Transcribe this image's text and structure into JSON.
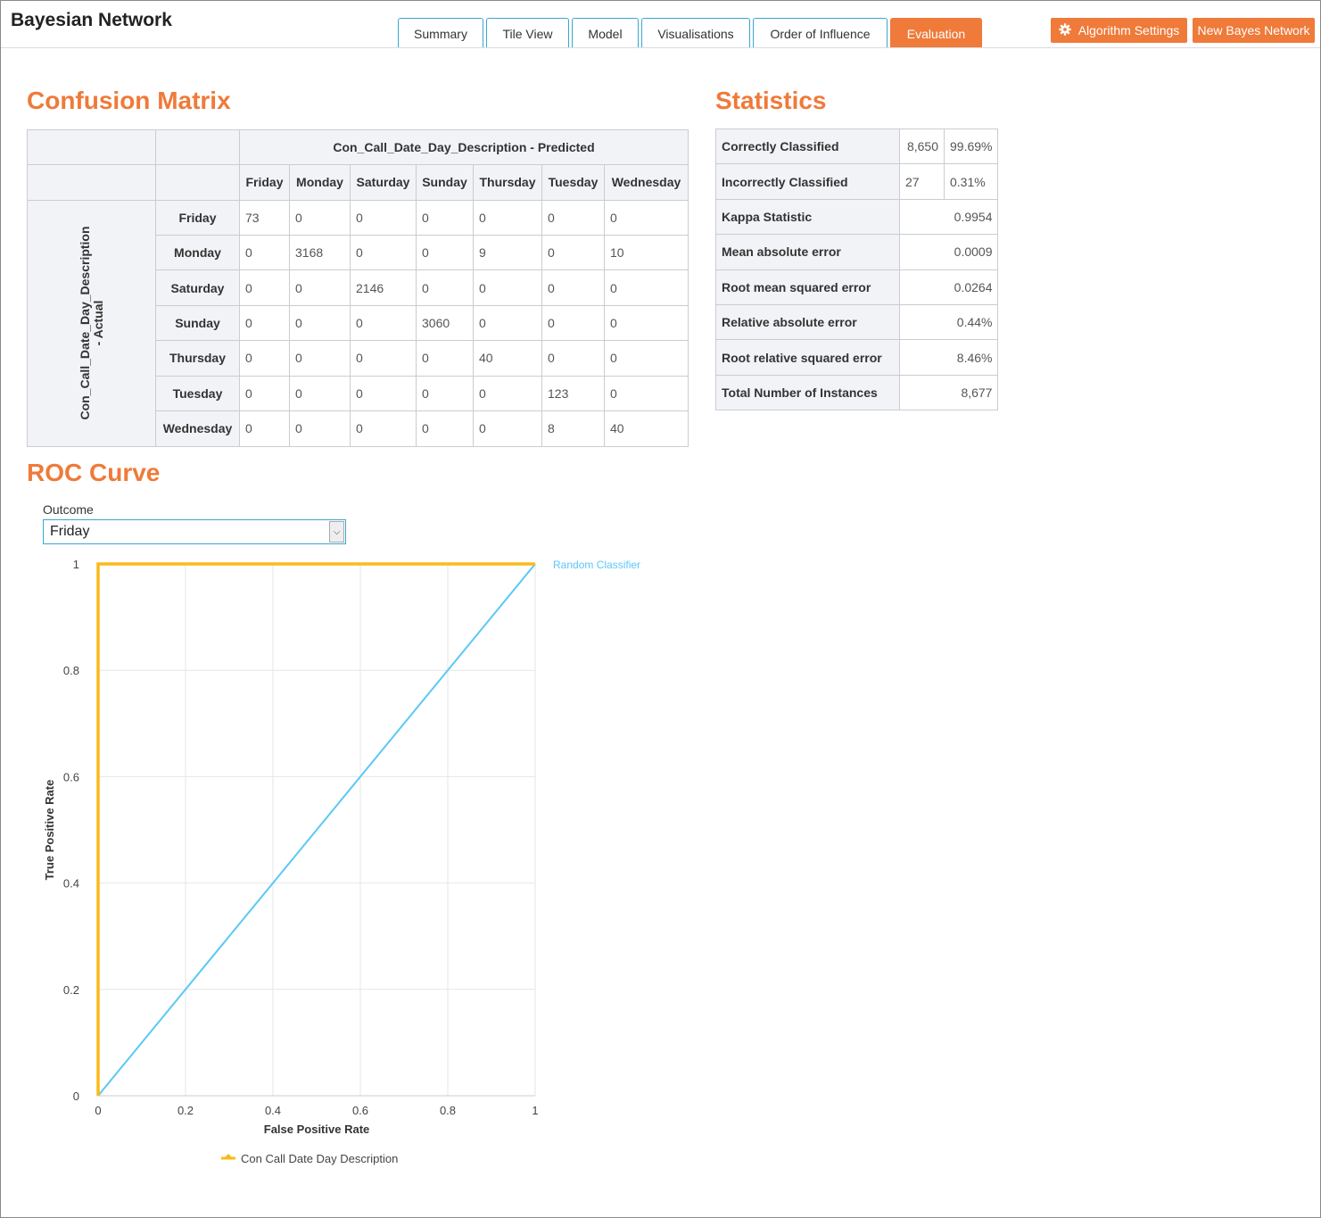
{
  "app": {
    "title": "Bayesian Network"
  },
  "tabs": [
    {
      "label": "Summary",
      "active": false
    },
    {
      "label": "Tile View",
      "active": false
    },
    {
      "label": "Model",
      "active": false
    },
    {
      "label": "Visualisations",
      "active": false
    },
    {
      "label": "Order of Influence",
      "active": false
    },
    {
      "label": "Evaluation",
      "active": true
    }
  ],
  "actions": {
    "algorithm_settings": "Algorithm Settings",
    "new_bayes_network": "New Bayes Network"
  },
  "colors": {
    "accent": "#ef7a39",
    "tab_border": "#3aa6d0",
    "series": "#fbba19",
    "random": "#5bc8f5"
  },
  "confusion_matrix": {
    "title": "Confusion Matrix",
    "predicted_label": "Con_Call_Date_Day_Description - Predicted",
    "actual_label_line1": "Con_Call_Date_Day_Description",
    "actual_label_line2": "- Actual",
    "columns": [
      "Friday",
      "Monday",
      "Saturday",
      "Sunday",
      "Thursday",
      "Tuesday",
      "Wednesday"
    ],
    "rows": [
      {
        "label": "Friday",
        "values": [
          "73",
          "0",
          "0",
          "0",
          "0",
          "0",
          "0"
        ]
      },
      {
        "label": "Monday",
        "values": [
          "0",
          "3168",
          "0",
          "0",
          "9",
          "0",
          "10"
        ]
      },
      {
        "label": "Saturday",
        "values": [
          "0",
          "0",
          "2146",
          "0",
          "0",
          "0",
          "0"
        ]
      },
      {
        "label": "Sunday",
        "values": [
          "0",
          "0",
          "0",
          "3060",
          "0",
          "0",
          "0"
        ]
      },
      {
        "label": "Thursday",
        "values": [
          "0",
          "0",
          "0",
          "0",
          "40",
          "0",
          "0"
        ]
      },
      {
        "label": "Tuesday",
        "values": [
          "0",
          "0",
          "0",
          "0",
          "0",
          "123",
          "0"
        ]
      },
      {
        "label": "Wednesday",
        "values": [
          "0",
          "0",
          "0",
          "0",
          "0",
          "8",
          "40"
        ]
      }
    ]
  },
  "statistics": {
    "title": "Statistics",
    "correctly_classified": {
      "label": "Correctly Classified",
      "count": "8,650",
      "pct": "99.69%"
    },
    "incorrectly_classified": {
      "label": "Incorrectly Classified",
      "count": "27",
      "pct": "0.31%"
    },
    "rows": [
      {
        "label": "Kappa Statistic",
        "value": "0.9954"
      },
      {
        "label": "Mean absolute error",
        "value": "0.0009"
      },
      {
        "label": "Root mean squared error",
        "value": "0.0264"
      },
      {
        "label": "Relative absolute error",
        "value": "0.44%"
      },
      {
        "label": "Root relative squared error",
        "value": "8.46%"
      },
      {
        "label": "Total Number of Instances",
        "value": "8,677"
      }
    ]
  },
  "roc": {
    "title": "ROC Curve",
    "outcome_label": "Outcome",
    "outcome_value": "Friday"
  },
  "chart_data": {
    "type": "line",
    "xlabel": "False Positive Rate",
    "ylabel": "True Positive Rate",
    "xlim": [
      0,
      1
    ],
    "ylim": [
      0,
      1
    ],
    "x_ticks": [
      "0",
      "0.2",
      "0.4",
      "0.6",
      "0.8",
      "1"
    ],
    "y_ticks": [
      "0",
      "0.2",
      "0.4",
      "0.6",
      "0.8",
      "1"
    ],
    "grid": true,
    "legend_position": "bottom",
    "series": [
      {
        "name": "Con Call Date Day Description",
        "x": [
          0,
          0,
          1
        ],
        "y": [
          0,
          1,
          1
        ],
        "color": "#fbba19",
        "in_legend": true
      },
      {
        "name": "Random Classifier",
        "x": [
          0,
          1
        ],
        "y": [
          0,
          1
        ],
        "color": "#5bc8f5",
        "in_legend": false
      }
    ]
  }
}
